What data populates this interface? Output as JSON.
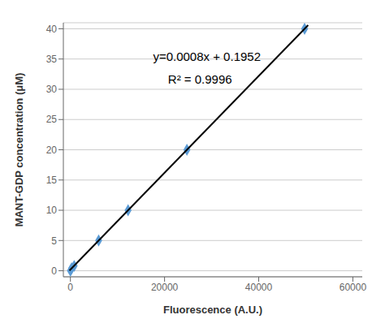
{
  "chart_data": {
    "type": "scatter",
    "x_label": "Fluorescence (A.U.)",
    "y_label": "MANT-GDP concentration (μM)",
    "annotations": [
      "y=0.0008x + 0.1952",
      "R² = 0.9996"
    ],
    "series": [
      {
        "type": "scatter",
        "marker": "diamond",
        "color": "#5B9BD5",
        "x": [
          0,
          250,
          800,
          6000,
          12250,
          24750,
          49750
        ],
        "values": [
          0,
          0.4,
          0.8,
          5.0,
          10.0,
          20.0,
          40.0
        ]
      },
      {
        "type": "line",
        "color": "#000000",
        "x": [
          -200,
          50500
        ],
        "values": [
          0.0352,
          40.5952
        ]
      }
    ],
    "xlim": [
      -1500,
      62000
    ],
    "ylim": [
      -1,
      41
    ],
    "xticks": [
      0,
      20000,
      40000,
      60000
    ],
    "yticks": [
      0,
      5,
      10,
      15,
      20,
      25,
      30,
      35,
      40
    ],
    "grid": "y"
  }
}
